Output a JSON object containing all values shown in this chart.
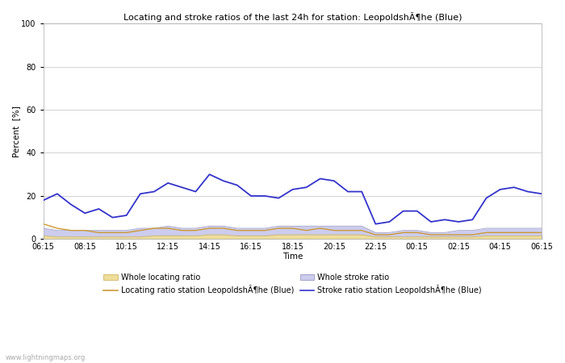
{
  "title": "Locating and stroke ratios of the last 24h for station: LeopoldshÃ¶he (Blue)",
  "xlabel": "Time",
  "ylabel": "Percent  [%]",
  "ylim": [
    0,
    100
  ],
  "yticks": [
    0,
    20,
    40,
    60,
    80,
    100
  ],
  "x_labels": [
    "06:15",
    "08:15",
    "10:15",
    "12:15",
    "14:15",
    "16:15",
    "18:15",
    "20:15",
    "22:15",
    "00:15",
    "02:15",
    "04:15",
    "06:15"
  ],
  "background_color": "#ffffff",
  "plot_bg_color": "#ffffff",
  "grid_color": "#cccccc",
  "watermark": "www.lightningmaps.org",
  "stroke_ratio_station": [
    18,
    21,
    16,
    12,
    14,
    10,
    11,
    21,
    22,
    26,
    24,
    22,
    30,
    27,
    25,
    20,
    20,
    19,
    23,
    24,
    28,
    27,
    22,
    22,
    7,
    8,
    13,
    13,
    8,
    9,
    8,
    9,
    19,
    23,
    24,
    22,
    21
  ],
  "stroke_ratio_station_color": "#3333cc",
  "locating_ratio_station": [
    7,
    5,
    4,
    4,
    3,
    3,
    3,
    4,
    5,
    5,
    4,
    4,
    5,
    5,
    4,
    4,
    4,
    5,
    5,
    4,
    5,
    4,
    4,
    4,
    2,
    2,
    3,
    3,
    2,
    2,
    2,
    2,
    3,
    3,
    3,
    3,
    3
  ],
  "locating_ratio_station_color": "#cc9933",
  "whole_stroke_ratio": [
    5,
    4,
    4,
    4,
    4,
    4,
    4,
    5,
    5,
    6,
    5,
    5,
    6,
    6,
    5,
    5,
    5,
    6,
    6,
    6,
    6,
    6,
    6,
    6,
    3,
    3,
    4,
    4,
    3,
    3,
    4,
    4,
    5,
    5,
    5,
    5,
    5
  ],
  "whole_stroke_fill": "#ccccee",
  "whole_locating_ratio": [
    1.5,
    1,
    1,
    1,
    1,
    1,
    1,
    1,
    1.5,
    1.5,
    1.5,
    1.5,
    2,
    2,
    1.5,
    1.5,
    1.5,
    2,
    2,
    2,
    2,
    2,
    2,
    2,
    1,
    1,
    1,
    1,
    1,
    1,
    1,
    1,
    1.5,
    1.5,
    1.5,
    1.5,
    1.5
  ],
  "whole_locating_fill": "#eedd99",
  "legend_whole_loc_label": "Whole locating ratio",
  "legend_loc_station_label": "Locating ratio station LeopoldshÃ¶he (Blue)",
  "legend_whole_stroke_label": "Whole stroke ratio",
  "legend_stroke_station_label": "Stroke ratio station LeopoldshÃ¶he (Blue)"
}
